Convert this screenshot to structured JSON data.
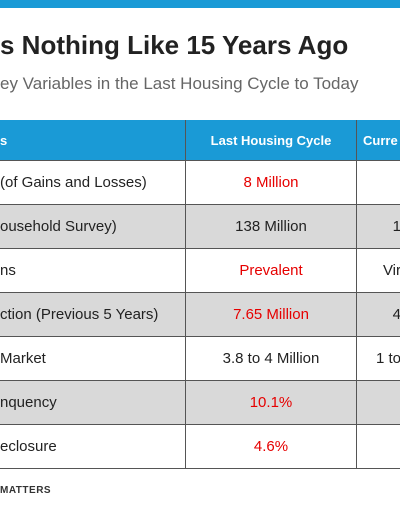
{
  "title": "s Nothing Like 15 Years Ago",
  "subtitle": "ey Variables in the Last Housing Cycle to Today",
  "table": {
    "header": [
      "s",
      "Last Housing Cycle",
      "Curre"
    ],
    "rows": [
      {
        "label": "(of Gains and Losses)",
        "last": "8 Million",
        "last_color": "#e60000"
      },
      {
        "label": "ousehold Survey)",
        "last": "138 Million",
        "last_color": "#222222",
        "current": "1"
      },
      {
        "label": "ns",
        "last": "Prevalent",
        "last_color": "#e60000",
        "current": "Vir"
      },
      {
        "label": "ction (Previous 5 Years)",
        "last": "7.65 Million",
        "last_color": "#e60000",
        "current": "4"
      },
      {
        "label": "Market",
        "last": "3.8 to 4 Million",
        "last_color": "#222222",
        "current": "1 to"
      },
      {
        "label": "nquency",
        "last": "10.1%",
        "last_color": "#e60000"
      },
      {
        "label": "eclosure",
        "last": "4.6%",
        "last_color": "#e60000"
      }
    ]
  },
  "footer": "MATTERS"
}
